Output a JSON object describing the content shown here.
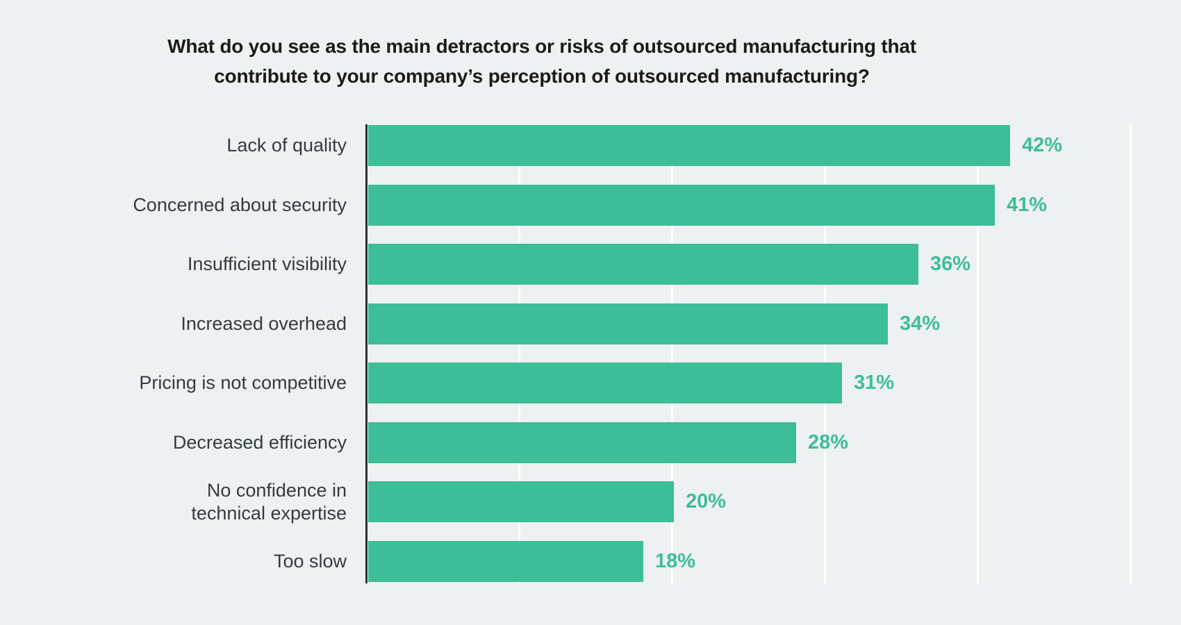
{
  "page": {
    "background_color": "#edf1f1"
  },
  "chart_data": {
    "type": "bar",
    "orientation": "horizontal",
    "title": "What do you see as the main detractors or risks of outsourced manufacturing that\ncontribute to your company’s perception of outsourced manufacturing?",
    "categories": [
      "Lack of quality",
      "Concerned about security",
      "Insufficient visibility",
      "Increased overhead",
      "Pricing is not competitive",
      "Decreased efficiency",
      "No confidence in\ntechnical expertise",
      "Too slow"
    ],
    "values": [
      42,
      41,
      36,
      34,
      31,
      28,
      20,
      18
    ],
    "value_labels": [
      "42%",
      "41%",
      "36%",
      "34%",
      "31%",
      "28%",
      "20%",
      "18%"
    ],
    "xlabel": "",
    "ylabel": "",
    "xlim": [
      0,
      50
    ],
    "gridlines_percent": [
      10,
      20,
      30,
      40,
      50
    ],
    "grid": "on",
    "legend": "none",
    "colors": {
      "background": "#edf1f1",
      "bar": "#3dbd98",
      "value_label": "#3dbd98",
      "category_label": "#333a41",
      "title": "#1b1b19",
      "axis_line": "#262f35",
      "gridline": "#ffffff"
    }
  }
}
